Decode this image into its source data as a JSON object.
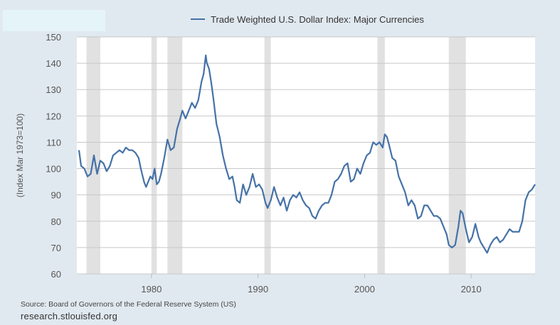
{
  "chart_data": {
    "type": "line",
    "title": "",
    "ylabel": "(Index Mar 1973=100)",
    "xlabel": "",
    "xlim": [
      1973,
      2016
    ],
    "ylim": [
      60,
      150
    ],
    "grid": true,
    "legend_position": "top-center",
    "y_ticks": [
      "60",
      "70",
      "80",
      "90",
      "100",
      "110",
      "120",
      "130",
      "140",
      "150"
    ],
    "x_ticks": [
      {
        "value": 1980,
        "label": "1980"
      },
      {
        "value": 1990,
        "label": "1990"
      },
      {
        "value": 2000,
        "label": "2000"
      },
      {
        "value": 2010,
        "label": "2010"
      }
    ],
    "recessions": [
      [
        1973.9,
        1975.2
      ],
      [
        1980.0,
        1980.5
      ],
      [
        1981.5,
        1982.9
      ],
      [
        1990.6,
        1991.2
      ],
      [
        2001.2,
        2001.9
      ],
      [
        2007.9,
        2009.5
      ]
    ],
    "series": [
      {
        "name": "Trade Weighted U.S. Dollar Index: Major Currencies",
        "color": "#4572a7",
        "points": [
          [
            1973.2,
            107
          ],
          [
            1973.4,
            101
          ],
          [
            1973.7,
            100
          ],
          [
            1974.0,
            97
          ],
          [
            1974.3,
            98
          ],
          [
            1974.6,
            105
          ],
          [
            1974.9,
            98
          ],
          [
            1975.2,
            103
          ],
          [
            1975.5,
            102
          ],
          [
            1975.8,
            99
          ],
          [
            1976.1,
            101
          ],
          [
            1976.4,
            105
          ],
          [
            1976.7,
            106
          ],
          [
            1977.0,
            107
          ],
          [
            1977.3,
            106
          ],
          [
            1977.6,
            108
          ],
          [
            1977.9,
            107
          ],
          [
            1978.2,
            107
          ],
          [
            1978.5,
            106
          ],
          [
            1978.8,
            104
          ],
          [
            1979.0,
            100
          ],
          [
            1979.3,
            95
          ],
          [
            1979.5,
            93
          ],
          [
            1979.7,
            95
          ],
          [
            1979.9,
            97
          ],
          [
            1980.1,
            96
          ],
          [
            1980.3,
            100
          ],
          [
            1980.5,
            94
          ],
          [
            1980.7,
            95
          ],
          [
            1980.9,
            98
          ],
          [
            1981.2,
            104
          ],
          [
            1981.5,
            111
          ],
          [
            1981.8,
            107
          ],
          [
            1982.1,
            108
          ],
          [
            1982.4,
            115
          ],
          [
            1982.7,
            119
          ],
          [
            1982.9,
            122
          ],
          [
            1983.2,
            119
          ],
          [
            1983.5,
            122
          ],
          [
            1983.8,
            125
          ],
          [
            1984.1,
            123
          ],
          [
            1984.4,
            126
          ],
          [
            1984.7,
            133
          ],
          [
            1984.9,
            136
          ],
          [
            1985.1,
            143
          ],
          [
            1985.2,
            140
          ],
          [
            1985.4,
            138
          ],
          [
            1985.6,
            133
          ],
          [
            1985.8,
            127
          ],
          [
            1986.1,
            117
          ],
          [
            1986.4,
            112
          ],
          [
            1986.7,
            105
          ],
          [
            1987.0,
            100
          ],
          [
            1987.3,
            96
          ],
          [
            1987.6,
            97
          ],
          [
            1987.8,
            93
          ],
          [
            1988.0,
            88
          ],
          [
            1988.3,
            87
          ],
          [
            1988.6,
            94
          ],
          [
            1988.9,
            90
          ],
          [
            1989.2,
            93
          ],
          [
            1989.5,
            98
          ],
          [
            1989.8,
            93
          ],
          [
            1990.1,
            94
          ],
          [
            1990.4,
            92
          ],
          [
            1990.7,
            87
          ],
          [
            1990.9,
            85
          ],
          [
            1991.2,
            88
          ],
          [
            1991.5,
            93
          ],
          [
            1991.8,
            89
          ],
          [
            1992.1,
            86
          ],
          [
            1992.4,
            89
          ],
          [
            1992.7,
            84
          ],
          [
            1993.0,
            88
          ],
          [
            1993.3,
            90
          ],
          [
            1993.6,
            89
          ],
          [
            1993.9,
            91
          ],
          [
            1994.2,
            88
          ],
          [
            1994.5,
            86
          ],
          [
            1994.8,
            85
          ],
          [
            1995.1,
            82
          ],
          [
            1995.4,
            81
          ],
          [
            1995.7,
            84
          ],
          [
            1996.0,
            86
          ],
          [
            1996.3,
            87
          ],
          [
            1996.6,
            87
          ],
          [
            1996.9,
            90
          ],
          [
            1997.2,
            95
          ],
          [
            1997.5,
            96
          ],
          [
            1997.8,
            98
          ],
          [
            1998.1,
            101
          ],
          [
            1998.4,
            102
          ],
          [
            1998.7,
            95
          ],
          [
            1999.0,
            96
          ],
          [
            1999.3,
            100
          ],
          [
            1999.6,
            98
          ],
          [
            1999.9,
            102
          ],
          [
            2000.2,
            105
          ],
          [
            2000.5,
            106
          ],
          [
            2000.8,
            110
          ],
          [
            2001.1,
            109
          ],
          [
            2001.4,
            110
          ],
          [
            2001.7,
            108
          ],
          [
            2001.9,
            113
          ],
          [
            2002.1,
            112
          ],
          [
            2002.3,
            109
          ],
          [
            2002.6,
            104
          ],
          [
            2002.9,
            103
          ],
          [
            2003.2,
            97
          ],
          [
            2003.5,
            94
          ],
          [
            2003.8,
            91
          ],
          [
            2004.1,
            86
          ],
          [
            2004.4,
            88
          ],
          [
            2004.7,
            86
          ],
          [
            2005.0,
            81
          ],
          [
            2005.3,
            82
          ],
          [
            2005.6,
            86
          ],
          [
            2005.9,
            86
          ],
          [
            2006.2,
            84
          ],
          [
            2006.5,
            82
          ],
          [
            2006.8,
            82
          ],
          [
            2007.1,
            81
          ],
          [
            2007.4,
            78
          ],
          [
            2007.7,
            75
          ],
          [
            2007.9,
            71
          ],
          [
            2008.2,
            70
          ],
          [
            2008.5,
            71
          ],
          [
            2008.8,
            78
          ],
          [
            2009.0,
            84
          ],
          [
            2009.2,
            83
          ],
          [
            2009.5,
            77
          ],
          [
            2009.8,
            72
          ],
          [
            2010.1,
            74
          ],
          [
            2010.4,
            79
          ],
          [
            2010.7,
            74
          ],
          [
            2010.9,
            72
          ],
          [
            2011.2,
            70
          ],
          [
            2011.5,
            68
          ],
          [
            2011.8,
            71
          ],
          [
            2012.1,
            73
          ],
          [
            2012.4,
            74
          ],
          [
            2012.7,
            72
          ],
          [
            2013.0,
            73
          ],
          [
            2013.3,
            75
          ],
          [
            2013.6,
            77
          ],
          [
            2013.9,
            76
          ],
          [
            2014.2,
            76
          ],
          [
            2014.5,
            76
          ],
          [
            2014.8,
            80
          ],
          [
            2015.1,
            88
          ],
          [
            2015.4,
            91
          ],
          [
            2015.7,
            92
          ],
          [
            2016.0,
            94
          ]
        ]
      }
    ]
  },
  "footer": {
    "source": "Source: Board of Governors of the Federal Reserve System (US)",
    "site": "research.stlouisfed.org"
  }
}
